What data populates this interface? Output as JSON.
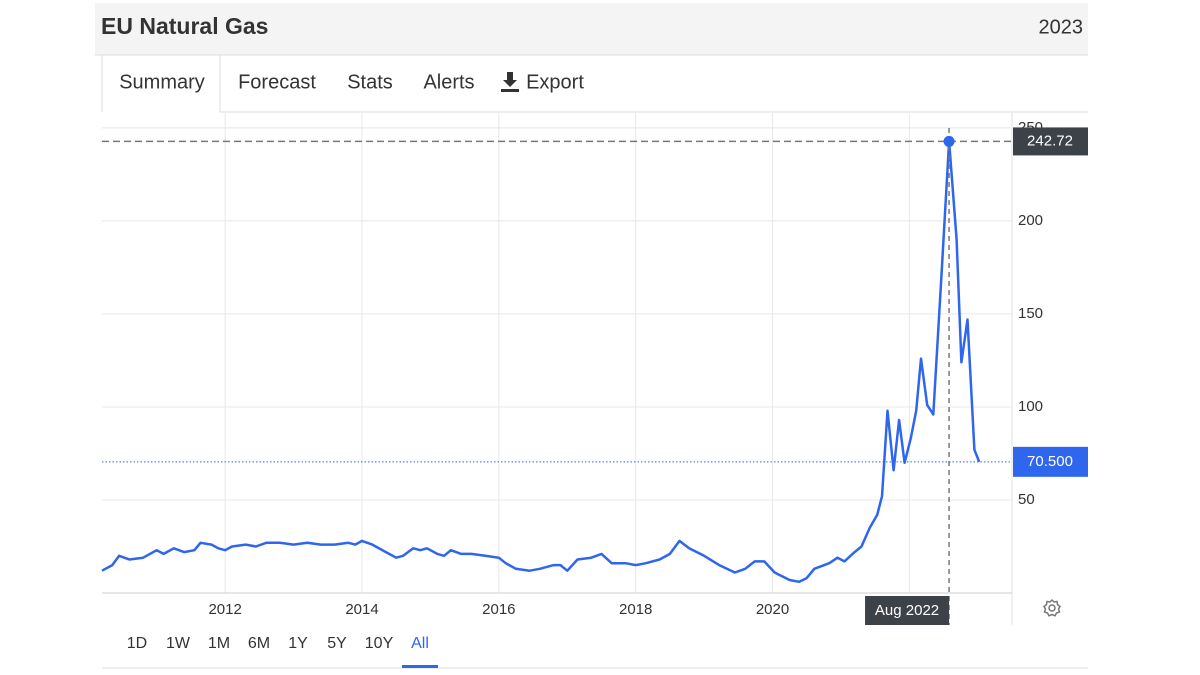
{
  "header": {
    "title": "EU Natural Gas",
    "year": "2023"
  },
  "tabs": [
    "Summary",
    "Forecast",
    "Stats",
    "Alerts",
    "Export"
  ],
  "ranges": [
    "1D",
    "1W",
    "1M",
    "6M",
    "1Y",
    "5Y",
    "10Y",
    "All"
  ],
  "chart_data": {
    "type": "line",
    "x": [
      2010.2,
      2010.35,
      2010.45,
      2010.6,
      2010.8,
      2011.0,
      2011.1,
      2011.25,
      2011.4,
      2011.55,
      2011.64,
      2011.8,
      2011.9,
      2012.0,
      2012.1,
      2012.3,
      2012.45,
      2012.6,
      2012.8,
      2013.0,
      2013.2,
      2013.4,
      2013.6,
      2013.8,
      2013.9,
      2014.0,
      2014.15,
      2014.35,
      2014.5,
      2014.6,
      2014.75,
      2014.85,
      2014.95,
      2015.1,
      2015.2,
      2015.3,
      2015.45,
      2015.6,
      2015.8,
      2016.0,
      2016.1,
      2016.25,
      2016.45,
      2016.6,
      2016.8,
      2016.9,
      2017.0,
      2017.15,
      2017.35,
      2017.5,
      2017.65,
      2017.85,
      2018.0,
      2018.15,
      2018.35,
      2018.5,
      2018.64,
      2018.78,
      2019.0,
      2019.22,
      2019.45,
      2019.6,
      2019.74,
      2019.88,
      2020.03,
      2020.25,
      2020.39,
      2020.5,
      2020.61,
      2020.83,
      2020.95,
      2021.05,
      2021.2,
      2021.3,
      2021.42,
      2021.53,
      2021.6,
      2021.68,
      2021.77,
      2021.85,
      2021.93,
      2022.02,
      2022.1,
      2022.17,
      2022.26,
      2022.35,
      2022.47,
      2022.58,
      2022.69,
      2022.76,
      2022.85,
      2022.95,
      2023.02
    ],
    "values": [
      12,
      15,
      20,
      18,
      19,
      23,
      21,
      24,
      22,
      23,
      27,
      26,
      24,
      23,
      25,
      26,
      25,
      27,
      27,
      26,
      27,
      26,
      26,
      27,
      26,
      28,
      26,
      22,
      19,
      20,
      24,
      23,
      24,
      21,
      20,
      23,
      21,
      21,
      20,
      19,
      16,
      13,
      12,
      13,
      15,
      15,
      12,
      18,
      19,
      21,
      16,
      16,
      15,
      16,
      18,
      21,
      28,
      24,
      20,
      15,
      11,
      13,
      17,
      17,
      11,
      7,
      6,
      8,
      13,
      16,
      19,
      17,
      22,
      25,
      35,
      42,
      52,
      98,
      66,
      93,
      70,
      83,
      98,
      126,
      101,
      96,
      171,
      242.72,
      190,
      124,
      147,
      77,
      70.5
    ],
    "value_labels": [
      null,
      null,
      null,
      null,
      null,
      null,
      null,
      null,
      null,
      null,
      null,
      null,
      null,
      null,
      null,
      null,
      null,
      null,
      null,
      null,
      null,
      null,
      null,
      null,
      null,
      null,
      null,
      null,
      null,
      null,
      null,
      null,
      null,
      null,
      null,
      null,
      null,
      null,
      null,
      null,
      null,
      null,
      null,
      null,
      null,
      null,
      null,
      null,
      null,
      null,
      null,
      null,
      null,
      null,
      null,
      null,
      null,
      null,
      null,
      null,
      null,
      null,
      null,
      null,
      null,
      null,
      null,
      null,
      null,
      null,
      null,
      null,
      null,
      null,
      null,
      null,
      null,
      null,
      null,
      null,
      null,
      null,
      null,
      null,
      null,
      null,
      null,
      "242.72",
      null,
      null,
      null,
      null,
      "70.500"
    ],
    "crosshair_label": "Aug 2022",
    "color": "#2f66ee",
    "xlim": [
      2010.2,
      2023.5
    ],
    "xticks": [
      2012,
      2014,
      2016,
      2018,
      2020,
      2022
    ],
    "ylim": [
      0,
      258
    ],
    "yticks": [
      50,
      100,
      150,
      200,
      250
    ],
    "grid": true
  }
}
